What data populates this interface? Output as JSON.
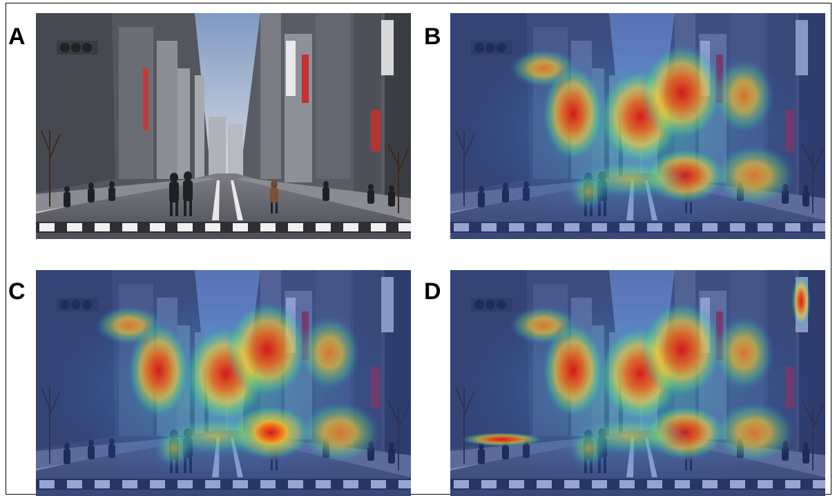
{
  "panels": [
    {
      "label": "A",
      "kind": "photo"
    },
    {
      "label": "B",
      "kind": "heatmap-overlay"
    },
    {
      "label": "C",
      "kind": "heatmap-overlay"
    },
    {
      "label": "D",
      "kind": "heatmap-overlay"
    }
  ],
  "colors": {
    "sky": "#c9d4e4",
    "building_dark": "#3d3f48",
    "road": "#5b5c62",
    "crosswalk": "#f0f0f0",
    "heat_hot": "#e0201a",
    "heat_warm": "#f5a020",
    "heat_mid": "#3fd07a",
    "heat_cool": "#2a6fd6"
  }
}
